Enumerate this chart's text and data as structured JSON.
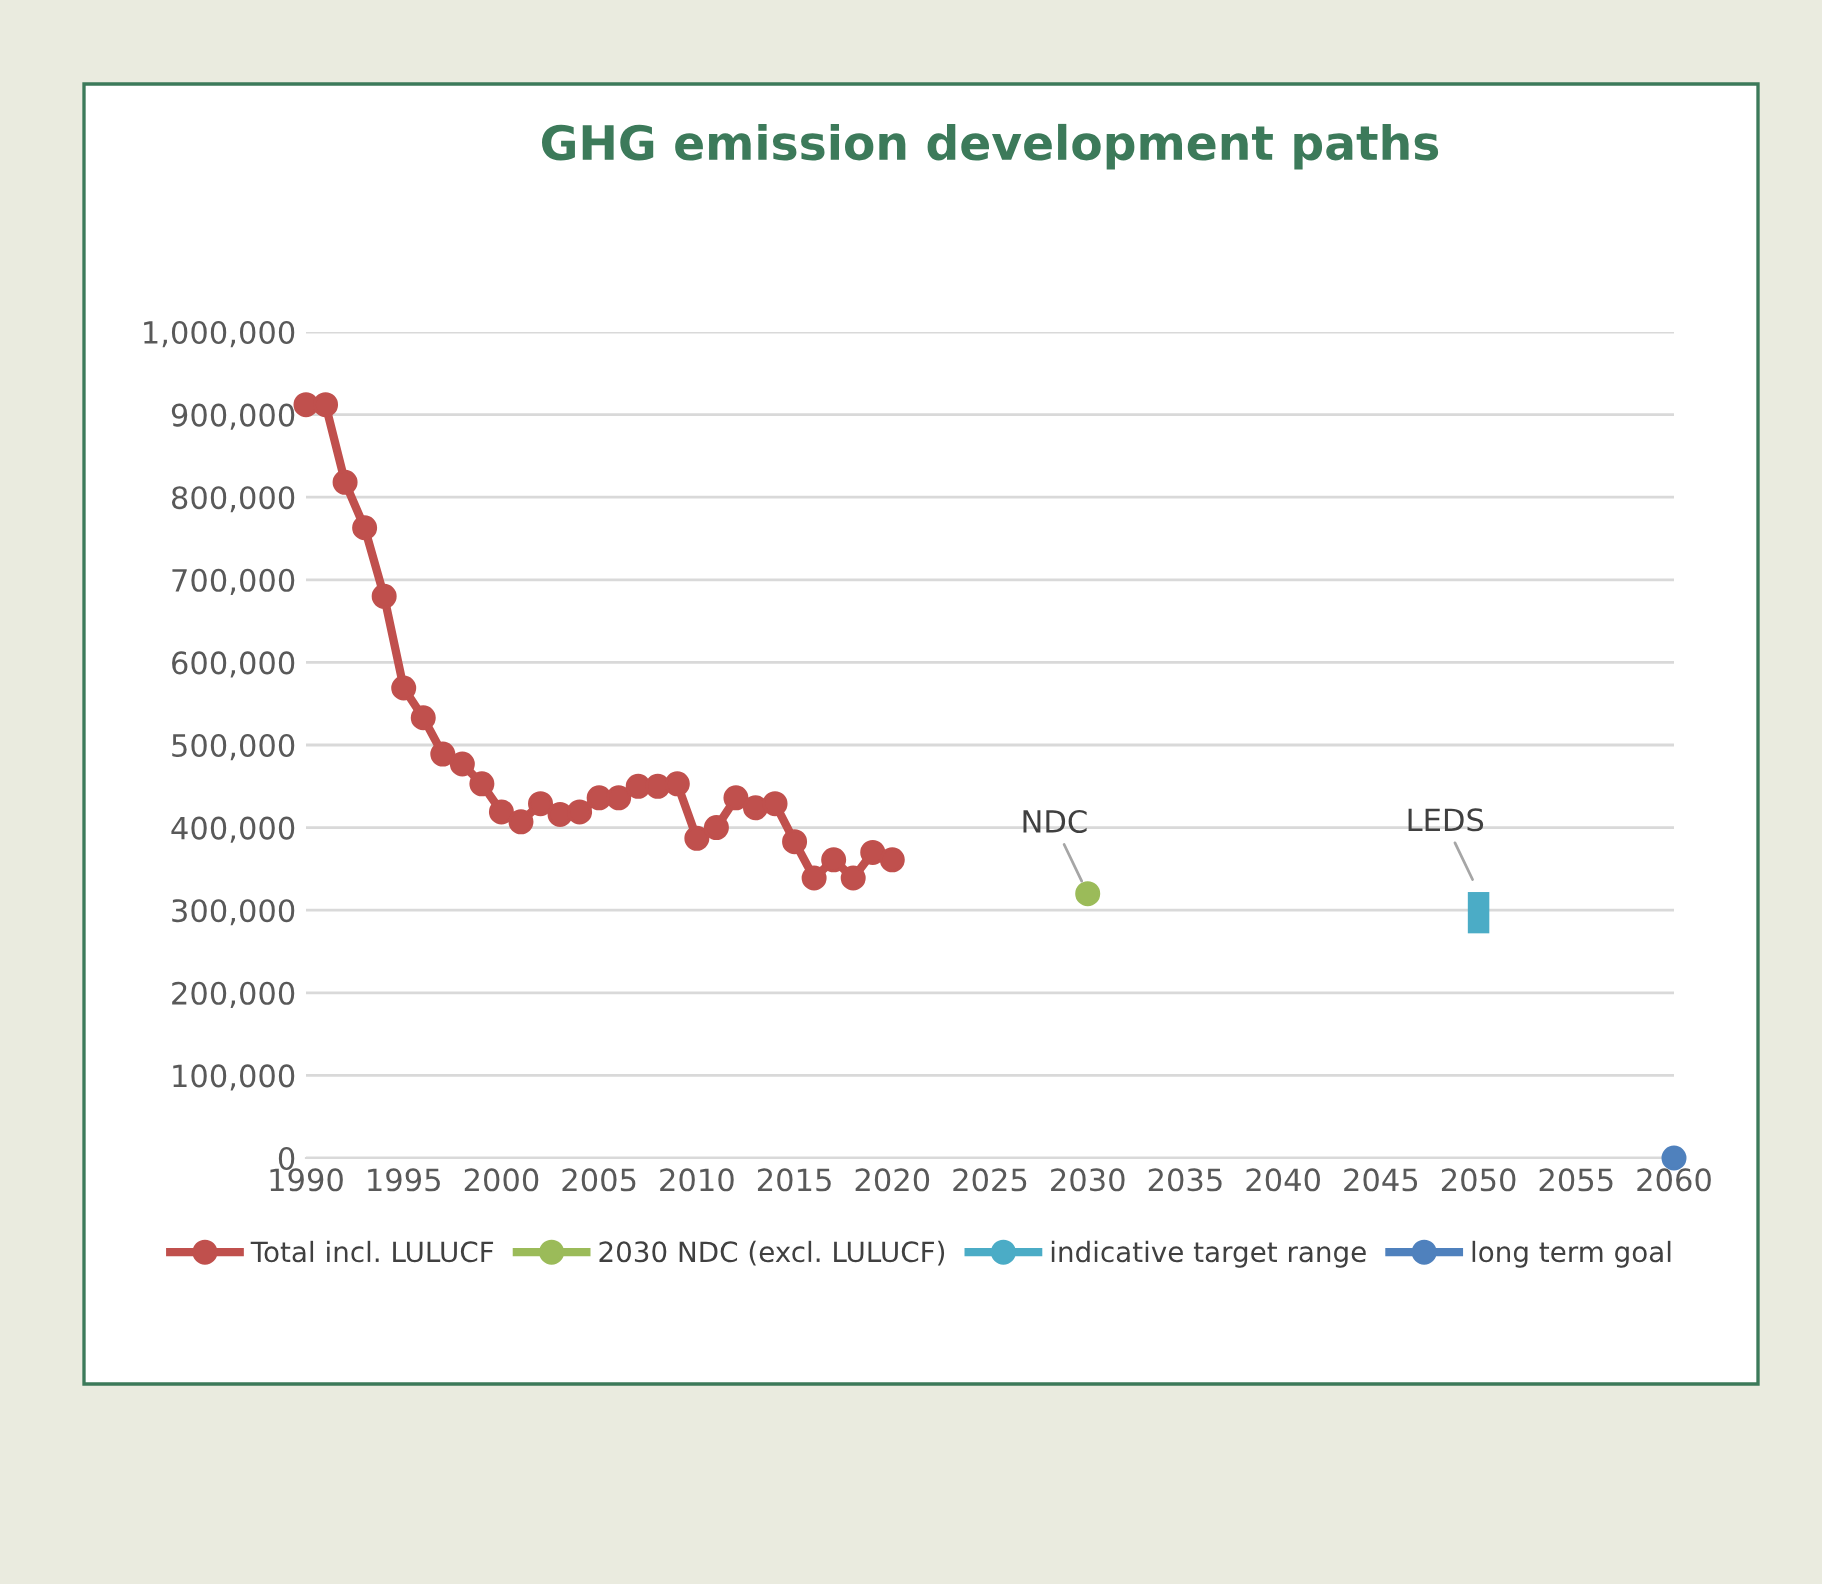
{
  "chart_data": {
    "type": "line",
    "title": "GHG emission development paths",
    "xlim": [
      1990,
      2060
    ],
    "xticks": [
      1990,
      1995,
      2000,
      2005,
      2010,
      2015,
      2020,
      2025,
      2030,
      2035,
      2040,
      2045,
      2050,
      2055,
      2060
    ],
    "ylim": [
      0,
      1000000
    ],
    "yticks": [
      {
        "value": 0,
        "label": "0"
      },
      {
        "value": 100000,
        "label": "100,000"
      },
      {
        "value": 200000,
        "label": "200,000"
      },
      {
        "value": 300000,
        "label": "300,000"
      },
      {
        "value": 400000,
        "label": "400,000"
      },
      {
        "value": 500000,
        "label": "500,000"
      },
      {
        "value": 600000,
        "label": "600,000"
      },
      {
        "value": 700000,
        "label": "700,000"
      },
      {
        "value": 800000,
        "label": "800,000"
      },
      {
        "value": 900000,
        "label": "900,000"
      },
      {
        "value": 1000000,
        "label": "1,000,000"
      }
    ],
    "grid": "y",
    "legend": "bottom",
    "marker": "circle",
    "series": [
      {
        "name": "Total incl. LULUCF",
        "color": "#c0504d",
        "x": [
          1990,
          1991,
          1992,
          1993,
          1994,
          1995,
          1996,
          1997,
          1998,
          1999,
          2000,
          2001,
          2002,
          2003,
          2004,
          2005,
          2006,
          2007,
          2008,
          2009,
          2010,
          2011,
          2012,
          2013,
          2014,
          2015,
          2016,
          2017,
          2018,
          2019,
          2020
        ],
        "values": [
          912000,
          912000,
          818000,
          763000,
          680000,
          569000,
          533000,
          489000,
          477000,
          453000,
          419000,
          407000,
          429000,
          416000,
          419000,
          436000,
          436000,
          450000,
          450000,
          453000,
          387000,
          400000,
          436000,
          424000,
          429000,
          383000,
          339000,
          361000,
          339000,
          370000,
          361000
        ]
      },
      {
        "name": "2030 NDC (excl. LULUCF)",
        "color": "#9bbb59",
        "x": [
          2030
        ],
        "values": [
          320000
        ]
      },
      {
        "name": "indicative target range",
        "color": "#4bacc6",
        "type": "bar",
        "x": [
          2050
        ],
        "base": [
          272000
        ],
        "values": [
          50000
        ]
      },
      {
        "name": "long term goal",
        "color": "#4f81bd",
        "x": [
          2060
        ],
        "values": [
          0
        ]
      }
    ],
    "annotations": [
      {
        "text": "NDC",
        "x": 2030,
        "y": 320000
      },
      {
        "text": "LEDS",
        "x": 2050,
        "y": 322000
      }
    ]
  }
}
